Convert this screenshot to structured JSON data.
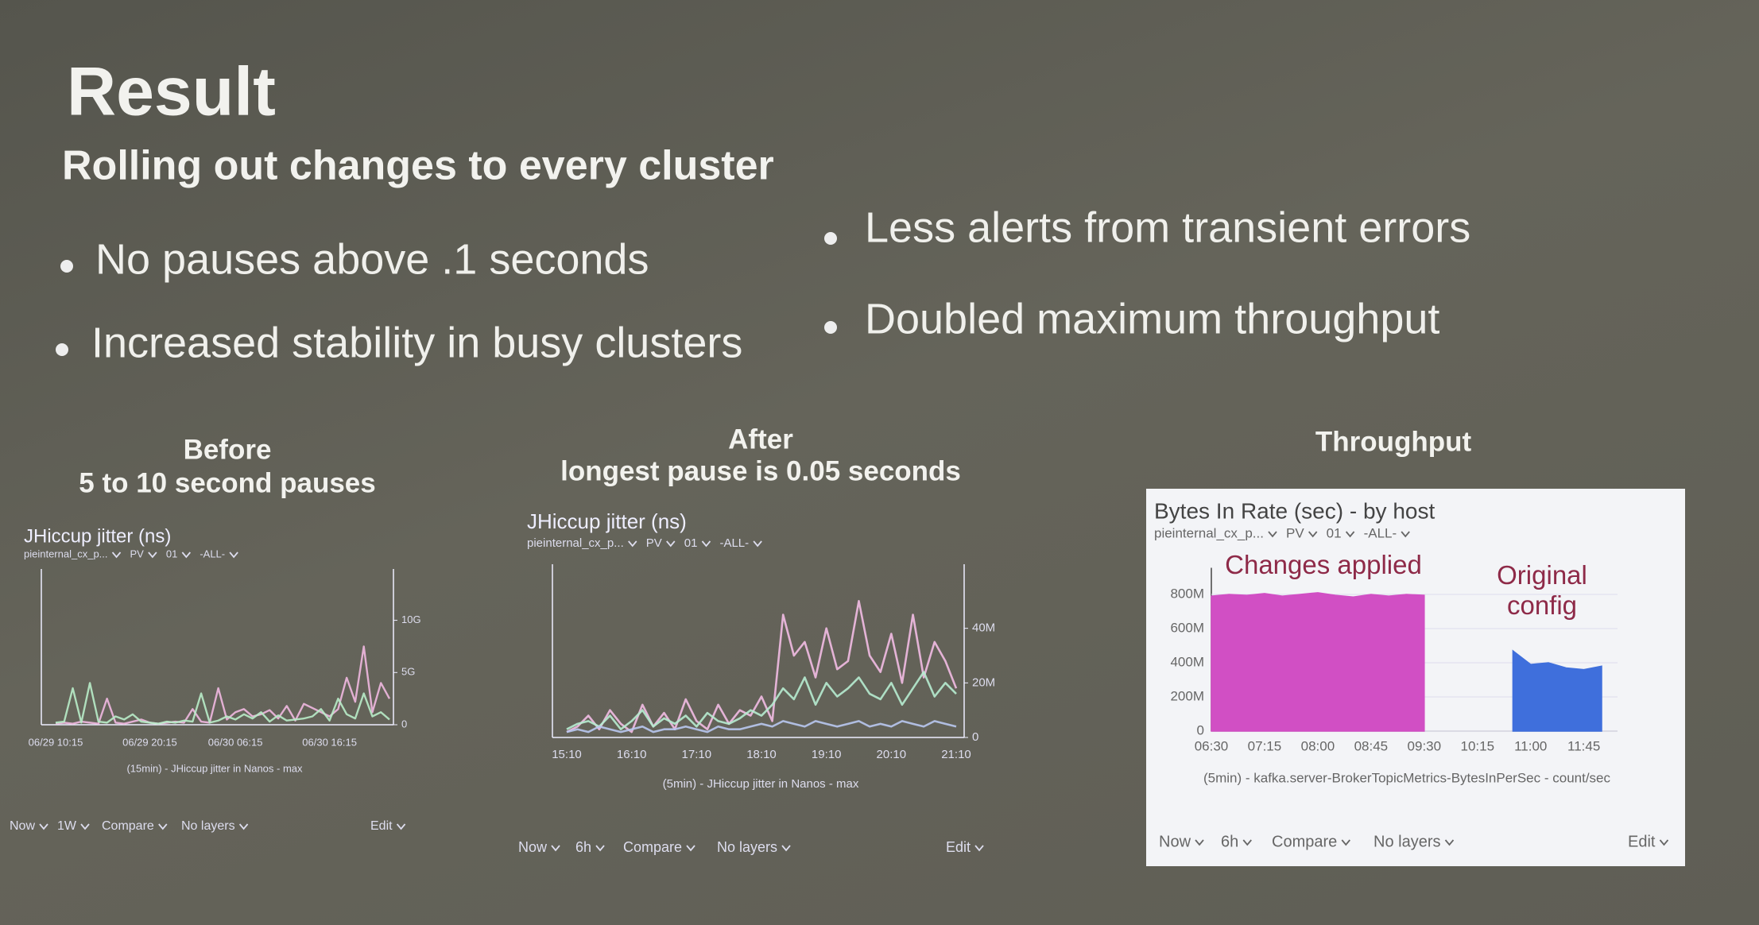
{
  "title": "Result",
  "subtitle": "Rolling out changes to every cluster",
  "bullets": [
    "No pauses above .1 seconds",
    "Increased stability in busy clusters",
    "Less alerts from transient errors",
    "Doubled maximum throughput"
  ],
  "chart_data": [
    {
      "type": "line",
      "caption": "Before",
      "caption_detail": "5 to 10 second pauses",
      "title": "JHiccup jitter (ns)",
      "filters": [
        "pieinternal_cx_p...",
        "PV",
        "01",
        "-ALL-"
      ],
      "footer": "(15min) - JHiccup jitter in Nanos - max",
      "controls": [
        "Now",
        "1W",
        "Compare",
        "No layers",
        "Edit"
      ],
      "categories": [
        "06/29 10:15",
        null,
        null,
        null,
        null,
        null,
        null,
        null,
        null,
        null,
        null,
        "06/29 20:15",
        null,
        null,
        null,
        null,
        null,
        null,
        null,
        null,
        null,
        "06/30 06:15",
        null,
        null,
        null,
        null,
        null,
        null,
        null,
        null,
        null,
        null,
        "06/30 16:15",
        null,
        null,
        null,
        null,
        null,
        null,
        null
      ],
      "series": [
        {
          "name": "pink",
          "color": "#f0b8e0",
          "values": [
            100000000.0,
            200000000.0,
            100000000.0,
            300000000.0,
            200000000.0,
            100000000.0,
            2500000000.0,
            200000000.0,
            100000000.0,
            300000000.0,
            500000000.0,
            200000000.0,
            100000000.0,
            200000000.0,
            300000000.0,
            200000000.0,
            1500000000.0,
            300000000.0,
            200000000.0,
            3500000000.0,
            500000000.0,
            1200000000.0,
            1500000000.0,
            800000000.0,
            1000000000.0,
            1400000000.0,
            600000000.0,
            1800000000.0,
            400000000.0,
            2000000000.0,
            1600000000.0,
            1200000000.0,
            800000000.0,
            1500000000.0,
            4500000000.0,
            2200000000.0,
            7500000000.0,
            1200000000.0,
            4000000000.0,
            2500000000.0
          ]
        },
        {
          "name": "green",
          "color": "#b8ecc8",
          "values": [
            200000000.0,
            300000000.0,
            3500000000.0,
            200000000.0,
            4000000000.0,
            300000000.0,
            200000000.0,
            800000000.0,
            500000000.0,
            1000000000.0,
            300000000.0,
            200000000.0,
            100000000.0,
            300000000.0,
            200000000.0,
            400000000.0,
            300000000.0,
            3000000000.0,
            200000000.0,
            400000000.0,
            800000000.0,
            500000000.0,
            1000000000.0,
            600000000.0,
            1200000000.0,
            300000000.0,
            900000000.0,
            400000000.0,
            500000000.0,
            600000000.0,
            800000000.0,
            1500000000.0,
            400000000.0,
            2500000000.0,
            1000000000.0,
            600000000.0,
            3000000000.0,
            800000000.0,
            1200000000.0,
            500000000.0
          ]
        }
      ],
      "ylim": [
        0,
        14000000000.0
      ],
      "yticks": [
        0,
        {
          "value": 5000000000.0,
          "label": "5G"
        },
        {
          "value": 10000000000.0,
          "label": "10G"
        }
      ]
    },
    {
      "type": "line",
      "caption": "After",
      "caption_detail": "longest pause is 0.05 seconds",
      "title": "JHiccup jitter (ns)",
      "filters": [
        "pieinternal_cx_p...",
        "PV",
        "01",
        "-ALL-"
      ],
      "footer": "(5min) - JHiccup jitter in Nanos - max",
      "controls": [
        "Now",
        "6h",
        "Compare",
        "No layers",
        "Edit"
      ],
      "categories": [
        "15:10",
        null,
        null,
        null,
        null,
        null,
        "16:10",
        null,
        null,
        null,
        null,
        null,
        "17:10",
        null,
        null,
        null,
        null,
        null,
        "18:10",
        null,
        null,
        null,
        null,
        null,
        "19:10",
        null,
        null,
        null,
        null,
        null,
        "20:10",
        null,
        null,
        null,
        null,
        null,
        "21:10"
      ],
      "series": [
        {
          "name": "pink",
          "color": "#f2bde4",
          "values": [
            2000000.0,
            4000000.0,
            8000000.0,
            3000000.0,
            10000000.0,
            5000000.0,
            2000000.0,
            12000000.0,
            4000000.0,
            9000000.0,
            3000000.0,
            14000000.0,
            6000000.0,
            3000000.0,
            12000000.0,
            5000000.0,
            10000000.0,
            8000000.0,
            15000000.0,
            6000000.0,
            45000000.0,
            30000000.0,
            35000000.0,
            22000000.0,
            40000000.0,
            25000000.0,
            28000000.0,
            50000000.0,
            30000000.0,
            24000000.0,
            38000000.0,
            20000000.0,
            45000000.0,
            22000000.0,
            35000000.0,
            28000000.0,
            18000000.0
          ]
        },
        {
          "name": "green",
          "color": "#b6ecd0",
          "values": [
            3000000.0,
            5000000.0,
            6000000.0,
            4000000.0,
            8000000.0,
            3000000.0,
            6000000.0,
            10000000.0,
            4000000.0,
            7000000.0,
            5000000.0,
            8000000.0,
            4000000.0,
            9000000.0,
            6000000.0,
            5000000.0,
            7000000.0,
            10000000.0,
            8000000.0,
            12000000.0,
            18000000.0,
            14000000.0,
            22000000.0,
            12000000.0,
            20000000.0,
            15000000.0,
            18000000.0,
            22000000.0,
            16000000.0,
            14000000.0,
            20000000.0,
            12000000.0,
            18000000.0,
            24000000.0,
            15000000.0,
            20000000.0,
            16000000.0
          ]
        },
        {
          "name": "blue",
          "color": "#b8c8f0",
          "values": [
            2000000.0,
            3000000.0,
            2000000.0,
            4000000.0,
            3000000.0,
            2000000.0,
            3000000.0,
            4000000.0,
            2000000.0,
            3000000.0,
            3000000.0,
            4000000.0,
            3000000.0,
            2000000.0,
            4000000.0,
            3000000.0,
            3000000.0,
            4000000.0,
            5000000.0,
            4000000.0,
            6000000.0,
            5000000.0,
            4000000.0,
            6000000.0,
            5000000.0,
            4000000.0,
            5000000.0,
            6000000.0,
            4000000.0,
            5000000.0,
            4000000.0,
            6000000.0,
            5000000.0,
            4000000.0,
            6000000.0,
            5000000.0,
            4000000.0
          ]
        }
      ],
      "ylim": [
        0,
        60000000.0
      ],
      "yticks": [
        0,
        {
          "value": 20000000.0,
          "label": "20M"
        },
        {
          "value": 40000000.0,
          "label": "40M"
        }
      ]
    },
    {
      "type": "area",
      "caption": "Throughput",
      "title": "Bytes In Rate (sec) - by host",
      "filters": [
        "pieinternal_cx_p...",
        "PV",
        "01",
        "-ALL-"
      ],
      "footer": "(5min) - kafka.server-BrokerTopicMetrics-BytesInPerSec - count/sec",
      "controls": [
        "Now",
        "6h",
        "Compare",
        "No layers",
        "Edit"
      ],
      "annotations": [
        "Changes applied",
        "Original config"
      ],
      "categories": [
        "06:30",
        null,
        null,
        "07:15",
        null,
        null,
        "08:00",
        null,
        null,
        "08:45",
        null,
        null,
        "09:30",
        null,
        null,
        "10:15",
        null,
        null,
        "11:00",
        null,
        null,
        "11:45",
        null
      ],
      "series": [
        {
          "name": "magenta",
          "color": "#d14fc4",
          "values": [
            790000000.0,
            800000000.0,
            795000000.0,
            805000000.0,
            790000000.0,
            800000000.0,
            810000000.0,
            795000000.0,
            785000000.0,
            800000000.0,
            790000000.0,
            800000000.0,
            795000000.0,
            null,
            null,
            null,
            null,
            null,
            null,
            null,
            null,
            null,
            null
          ]
        },
        {
          "name": "blue",
          "color": "#3f6fdc",
          "values": [
            null,
            null,
            null,
            null,
            null,
            null,
            null,
            null,
            null,
            null,
            null,
            null,
            null,
            null,
            null,
            null,
            null,
            470000000.0,
            390000000.0,
            400000000.0,
            370000000.0,
            360000000.0,
            380000000.0
          ]
        }
      ],
      "ylim": [
        0,
        900000000.0
      ],
      "yticks": [
        0,
        {
          "value": 200000000.0,
          "label": "200M"
        },
        {
          "value": 400000000.0,
          "label": "400M"
        },
        {
          "value": 600000000.0,
          "label": "600M"
        },
        {
          "value": 800000000.0,
          "label": "800M"
        }
      ]
    }
  ]
}
